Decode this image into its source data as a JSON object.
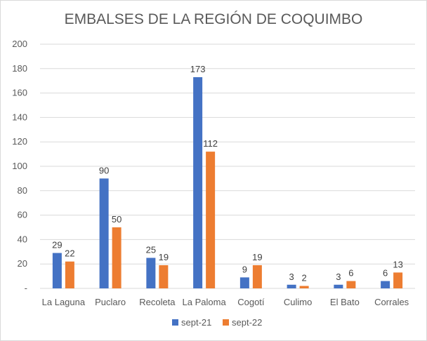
{
  "chart_data": {
    "type": "bar",
    "title": "EMBALSES DE LA REGIÓN DE COQUIMBO",
    "categories": [
      "La Laguna",
      "Puclaro",
      "Recoleta",
      "La Paloma",
      "Cogotí",
      "Culimo",
      "El Bato",
      "Corrales"
    ],
    "series": [
      {
        "name": "sept-21",
        "color": "#4472c4",
        "values": [
          29,
          90,
          25,
          173,
          9,
          3,
          3,
          6
        ]
      },
      {
        "name": "sept-22",
        "color": "#ed7d31",
        "values": [
          22,
          50,
          19,
          112,
          19,
          2,
          6,
          13
        ]
      }
    ],
    "ylim": [
      0,
      200
    ],
    "yticks": [
      "-",
      "20",
      "40",
      "60",
      "80",
      "100",
      "120",
      "140",
      "160",
      "180",
      "200"
    ],
    "grid": true,
    "legend_position": "bottom"
  }
}
